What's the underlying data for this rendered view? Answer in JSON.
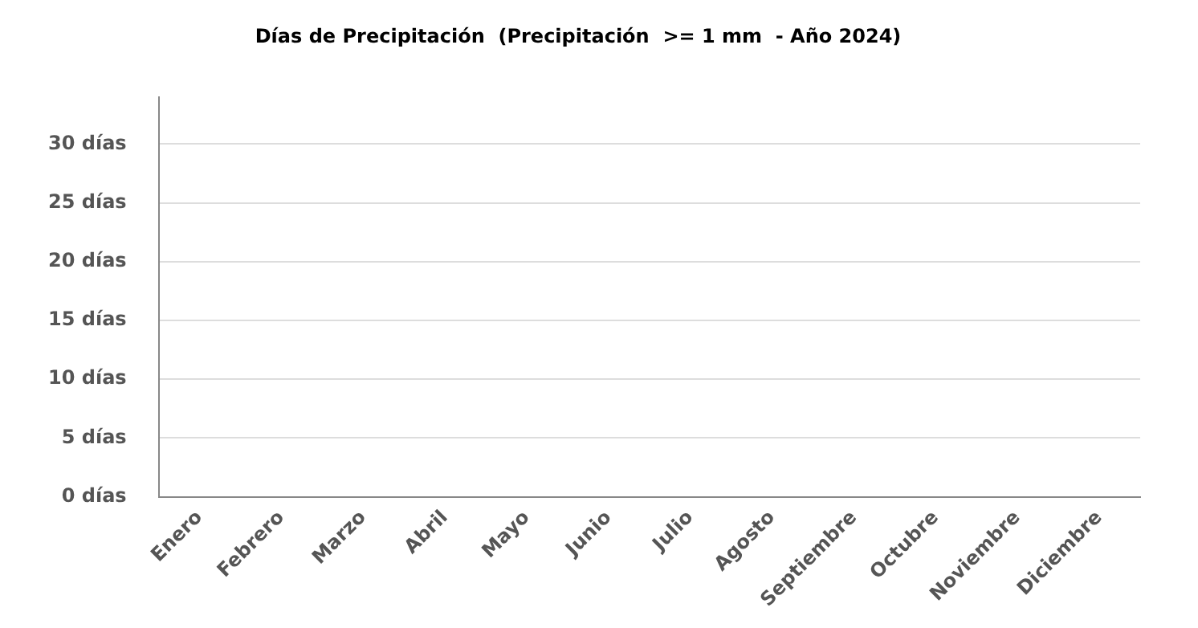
{
  "chart_data": {
    "type": "bar",
    "title": "Días de Precipitación  (Precipitación  >= 1 mm  - Año 2024)",
    "categories": [
      "Enero",
      "Febrero",
      "Marzo",
      "Abril",
      "Mayo",
      "Junio",
      "Julio",
      "Agosto",
      "Septiembre",
      "Octubre",
      "Noviembre",
      "Diciembre"
    ],
    "values": [
      null,
      null,
      null,
      null,
      null,
      null,
      null,
      null,
      null,
      null,
      null,
      null
    ],
    "ylim": [
      0,
      34
    ],
    "yticks": [
      {
        "value": 0,
        "label": "0 días"
      },
      {
        "value": 5,
        "label": "5 días"
      },
      {
        "value": 10,
        "label": "10 días"
      },
      {
        "value": 15,
        "label": "15 días"
      },
      {
        "value": 20,
        "label": "20 días"
      },
      {
        "value": 25,
        "label": "25 días"
      },
      {
        "value": 30,
        "label": "30 días"
      }
    ],
    "grid": "y",
    "legend": false
  }
}
